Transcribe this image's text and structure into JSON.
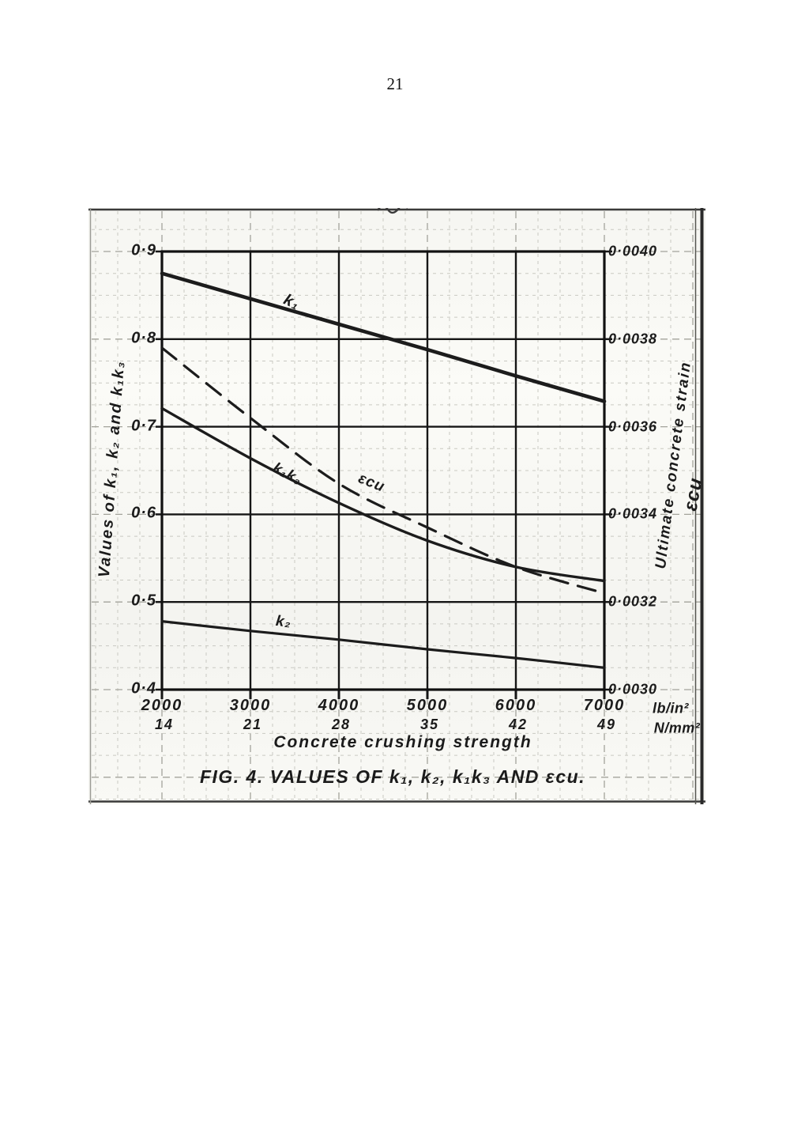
{
  "page": {
    "number": "21"
  },
  "figure": {
    "caption": "FIG. 4.   VALUES OF k₁, k₂, k₁k₃ AND εcu.",
    "x_axis": {
      "title": "Concrete crushing strength",
      "unit_primary": "lb/in²",
      "unit_secondary": "N/mm²",
      "ticks_primary": [
        "2000",
        "3000",
        "4000",
        "5000",
        "6000",
        "7000"
      ],
      "ticks_secondary": [
        "14",
        "21",
        "28",
        "35",
        "42",
        "49"
      ]
    },
    "left_axis": {
      "title": "Values of k₁, k₂ and k₁k₃",
      "ticks": [
        "0·9",
        "0·8",
        "0·7",
        "0·6",
        "0·5",
        "0·4"
      ]
    },
    "right_axis": {
      "title": "Ultimate concrete strain",
      "symbol": "εcu",
      "ticks": [
        "0·0040",
        "0·0038",
        "0·0036",
        "0·0034",
        "0·0032",
        "0·0030"
      ]
    },
    "curve_labels": {
      "k1": "k₁",
      "k1k3": "k₁k₃",
      "ecu": "εcu",
      "k2": "k₂"
    }
  },
  "chart_data": {
    "type": "line",
    "title": "FIG. 4. VALUES OF k₁, k₂, k₁k₃ AND εcu.",
    "xlabel": "Concrete crushing strength",
    "x_units": [
      "lb/in²",
      "N/mm²"
    ],
    "x_lb_per_in2": [
      2000,
      3000,
      4000,
      5000,
      6000,
      7000
    ],
    "x_N_per_mm2": [
      14,
      21,
      28,
      35,
      42,
      49
    ],
    "left_axis": {
      "label": "Values of k₁, k₂ and k₁k₃",
      "ylim": [
        0.4,
        0.9
      ]
    },
    "right_axis": {
      "label": "Ultimate concrete strain εcu",
      "ylim": [
        0.003,
        0.004
      ]
    },
    "grid": true,
    "legend_position": "inline-curve-labels",
    "series": [
      {
        "name": "k₁",
        "axis": "left",
        "line": "solid",
        "values": [
          0.875,
          0.846,
          0.817,
          0.788,
          0.758,
          0.729
        ]
      },
      {
        "name": "k₁k₃",
        "axis": "left",
        "line": "solid",
        "values": [
          0.721,
          0.664,
          0.613,
          0.57,
          0.54,
          0.524
        ]
      },
      {
        "name": "εcu",
        "axis": "right",
        "line": "dashed",
        "values": [
          0.00378,
          0.00362,
          0.00347,
          0.00337,
          0.00328,
          0.00322
        ]
      },
      {
        "name": "k₂",
        "axis": "left",
        "line": "solid",
        "values": [
          0.478,
          0.467,
          0.457,
          0.446,
          0.436,
          0.425
        ]
      }
    ]
  }
}
